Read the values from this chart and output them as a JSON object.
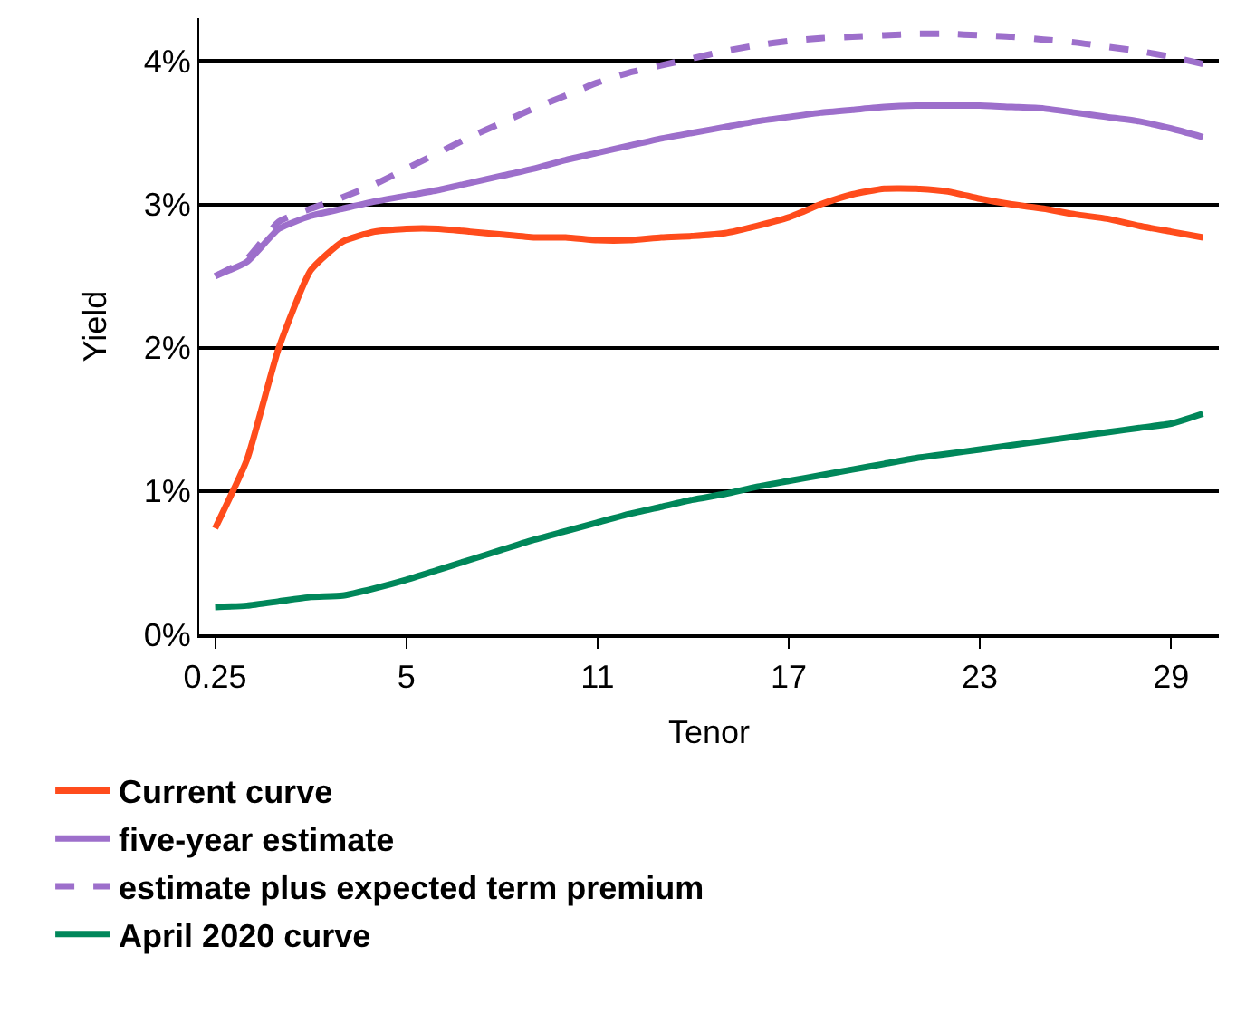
{
  "chart_data": {
    "type": "line",
    "xlabel": "Tenor",
    "ylabel": "Yield",
    "categories": [
      "0.25",
      null,
      null,
      null,
      null,
      null,
      "5",
      null,
      null,
      null,
      null,
      null,
      "11",
      null,
      null,
      null,
      null,
      null,
      "17",
      null,
      null,
      null,
      null,
      null,
      "23",
      null,
      null,
      null,
      null,
      null,
      "29",
      null
    ],
    "series": [
      {
        "name": "Current curve",
        "color": "#ff4c1c",
        "line_style": "solid",
        "values": [
          0.74,
          1.22,
          2.0,
          2.54,
          2.74,
          2.81,
          2.83,
          2.83,
          2.81,
          2.79,
          2.77,
          2.77,
          2.75,
          2.75,
          2.77,
          2.78,
          2.8,
          2.85,
          2.91,
          3.0,
          3.07,
          3.11,
          3.11,
          3.09,
          3.04,
          3.0,
          2.97,
          2.93,
          2.9,
          2.85,
          2.81,
          2.77
        ]
      },
      {
        "name": "five-year estimate",
        "color": "#9d6fcb",
        "line_style": "solid",
        "values": [
          2.5,
          2.6,
          2.83,
          2.92,
          2.97,
          3.02,
          3.06,
          3.1,
          3.15,
          3.2,
          3.25,
          3.31,
          3.36,
          3.41,
          3.46,
          3.5,
          3.54,
          3.58,
          3.61,
          3.64,
          3.66,
          3.68,
          3.69,
          3.69,
          3.69,
          3.68,
          3.67,
          3.64,
          3.61,
          3.58,
          3.53,
          3.47
        ]
      },
      {
        "name": "estimate plus expected term premium",
        "color": "#9d6fcb",
        "line_style": "dashed",
        "values": [
          2.5,
          2.62,
          2.88,
          2.97,
          3.05,
          3.14,
          3.25,
          3.36,
          3.47,
          3.57,
          3.67,
          3.76,
          3.85,
          3.92,
          3.97,
          4.02,
          4.07,
          4.11,
          4.14,
          4.16,
          4.17,
          4.18,
          4.19,
          4.19,
          4.18,
          4.17,
          4.15,
          4.13,
          4.1,
          4.07,
          4.03,
          3.98
        ]
      },
      {
        "name": "April 2020 curve",
        "color": "#00875a",
        "line_style": "solid",
        "values": [
          0.19,
          0.2,
          0.23,
          0.26,
          0.27,
          0.32,
          0.38,
          0.45,
          0.52,
          0.59,
          0.66,
          0.72,
          0.78,
          0.84,
          0.89,
          0.94,
          0.98,
          1.03,
          1.07,
          1.11,
          1.15,
          1.19,
          1.23,
          1.26,
          1.29,
          1.32,
          1.35,
          1.38,
          1.41,
          1.44,
          1.47,
          1.54
        ]
      }
    ],
    "ylim": [
      0,
      4.3
    ],
    "yticks": [
      {
        "value": 0,
        "label": "0%"
      },
      {
        "value": 1,
        "label": "1%"
      },
      {
        "value": 2,
        "label": "2%"
      },
      {
        "value": 3,
        "label": "3%"
      },
      {
        "value": 4,
        "label": "4%"
      }
    ],
    "grid": "y",
    "legend": "bottom",
    "marker": "none"
  }
}
